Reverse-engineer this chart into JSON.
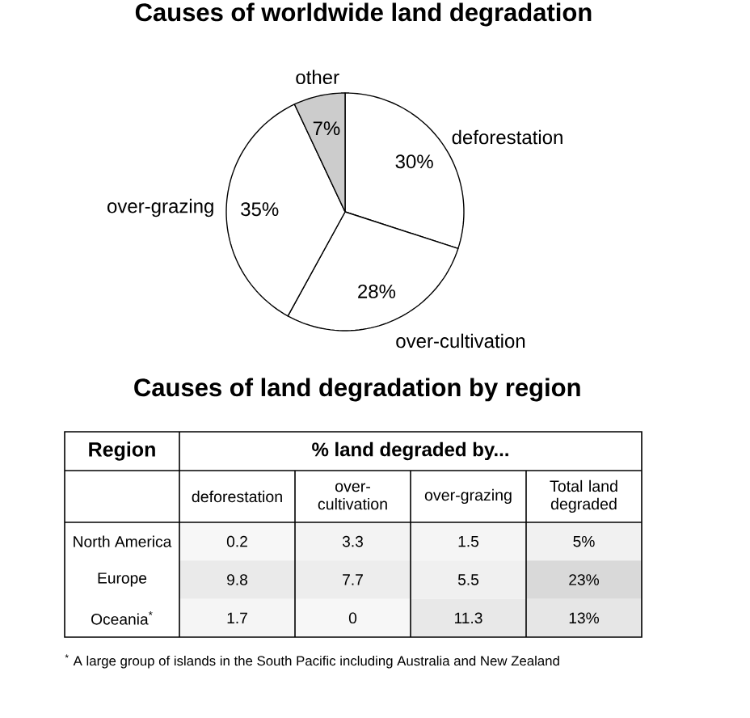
{
  "chart_data": [
    {
      "type": "pie",
      "title": "Causes of worldwide land degradation",
      "categories": [
        "deforestation",
        "over-cultivation",
        "over-grazing",
        "other"
      ],
      "values": [
        30,
        28,
        35,
        7
      ],
      "value_labels": [
        "30%",
        "28%",
        "35%",
        "7%"
      ],
      "colors": [
        "#ffffff",
        "#ffffff",
        "#ffffff",
        "#cccccc"
      ]
    },
    {
      "type": "heatmap",
      "title": "Causes of land degradation by region",
      "xlabel": "% land degraded by...",
      "ylabel": "Region",
      "categories": [
        "deforestation",
        "over-cultivation",
        "over-grazing",
        "Total land degraded"
      ],
      "y_categories": [
        "North America",
        "Europe",
        "Oceania$^{*}$"
      ],
      "cells": [
        [
          0.2,
          3.3,
          1.5,
          5
        ],
        [
          9.8,
          7.7,
          5.5,
          23
        ],
        [
          1.7,
          0,
          11.3,
          13
        ]
      ],
      "cell_labels": [
        [
          "0.2",
          "3.3",
          "1.5",
          "5%"
        ],
        [
          "9.8",
          "7.7",
          "5.5",
          "23%"
        ],
        [
          "1.7",
          "0",
          "11.3",
          "13%"
        ]
      ],
      "annotations": [
        "$^{*}$ A large group of islands in the South Pacific including Australia and New Zealand"
      ]
    }
  ]
}
